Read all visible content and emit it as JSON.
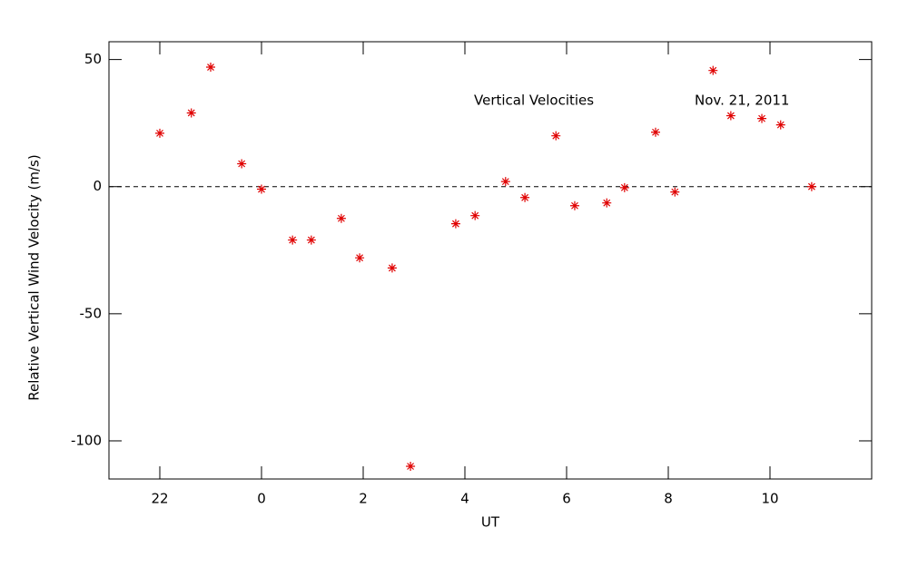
{
  "chart_data": {
    "type": "scatter",
    "annotations": [
      "Vertical Velocities",
      "Nov. 21, 2011"
    ],
    "x_label": "UT",
    "y_label": "Relative Vertical Wind Velocity (m/s)",
    "color": "#e00000",
    "reference_line": 0,
    "xlim": [
      -3,
      12
    ],
    "xticks": [
      {
        "value": -2,
        "label": "22"
      },
      0,
      2,
      4,
      6,
      8,
      10
    ],
    "ylim": [
      -115,
      57
    ],
    "yticks": [
      -100,
      -50,
      0,
      50
    ],
    "x": [
      -2.0,
      -1.38,
      -1.0,
      -0.39,
      0.0,
      0.61,
      0.98,
      1.57,
      1.93,
      2.57,
      2.93,
      3.82,
      4.2,
      4.8,
      5.18,
      5.79,
      6.16,
      6.79,
      7.14,
      7.75,
      8.13,
      8.88,
      9.23,
      9.84,
      10.21,
      10.82
    ],
    "values": [
      21,
      29,
      47,
      9,
      -1,
      -21,
      -21,
      -12.5,
      -28,
      -32,
      -110,
      -14.6,
      -11.4,
      2,
      -4.3,
      20,
      -7.5,
      -6.4,
      -0.4,
      21.4,
      -2.1,
      45.7,
      27.9,
      26.8,
      24.3,
      0
    ]
  }
}
